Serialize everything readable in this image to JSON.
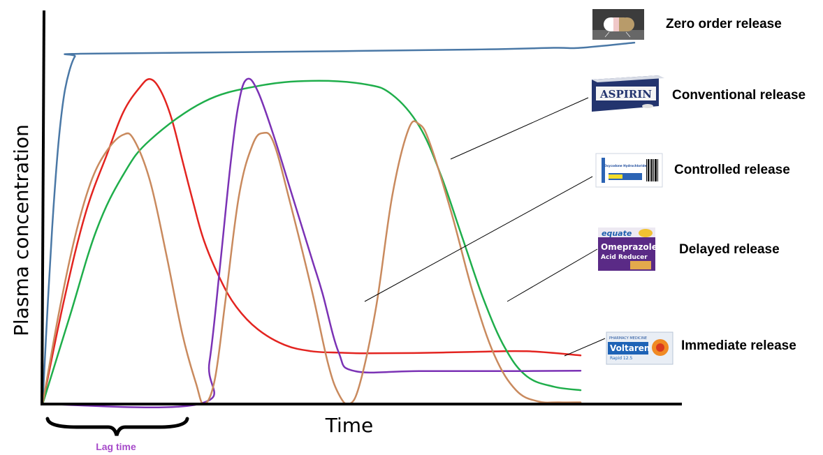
{
  "chart_data": {
    "type": "line",
    "xlabel": "Time",
    "ylabel": "Plasma concentration",
    "annotation": "Lag time",
    "series": [
      {
        "name": "Zero order release",
        "color": "#4a78a6",
        "points": [
          [
            0,
            0
          ],
          [
            1,
            30
          ],
          [
            2,
            56
          ],
          [
            3,
            76
          ],
          [
            4,
            89
          ],
          [
            5,
            96
          ],
          [
            6,
            100
          ],
          [
            7,
            100.8
          ],
          [
            40,
            101.3
          ],
          [
            80,
            102
          ],
          [
            95,
            102.5
          ],
          [
            100,
            102.5
          ],
          [
            110,
            104
          ]
        ]
      },
      {
        "name": "Conventional release",
        "color": "#e32420",
        "points": [
          [
            0,
            0
          ],
          [
            4,
            30
          ],
          [
            8,
            55
          ],
          [
            12,
            72
          ],
          [
            15,
            84
          ],
          [
            18,
            91
          ],
          [
            20,
            93.5
          ],
          [
            22,
            90
          ],
          [
            24,
            82
          ],
          [
            26,
            70
          ],
          [
            28,
            58
          ],
          [
            30,
            47
          ],
          [
            33,
            36
          ],
          [
            36,
            28
          ],
          [
            40,
            21.5
          ],
          [
            45,
            17
          ],
          [
            50,
            15.2
          ],
          [
            55,
            14.8
          ],
          [
            60,
            14.6
          ],
          [
            70,
            14.7
          ],
          [
            80,
            15
          ],
          [
            90,
            15.2
          ],
          [
            100,
            14
          ]
        ]
      },
      {
        "name": "Controlled release",
        "color": "#1fae4b",
        "points": [
          [
            0,
            0
          ],
          [
            5,
            25
          ],
          [
            10,
            50
          ],
          [
            15,
            66
          ],
          [
            20,
            76
          ],
          [
            30,
            87
          ],
          [
            40,
            91.5
          ],
          [
            50,
            93
          ],
          [
            60,
            92
          ],
          [
            65,
            89
          ],
          [
            70,
            80
          ],
          [
            74,
            66
          ],
          [
            78,
            48
          ],
          [
            82,
            30
          ],
          [
            86,
            16
          ],
          [
            90,
            8
          ],
          [
            95,
            5
          ],
          [
            100,
            4
          ]
        ]
      },
      {
        "name": "Delayed release",
        "color": "#7b32b5",
        "points": [
          [
            0,
            0
          ],
          [
            29,
            0
          ],
          [
            31,
            12
          ],
          [
            33,
            40
          ],
          [
            35,
            70
          ],
          [
            36.5,
            87
          ],
          [
            38,
            93.5
          ],
          [
            40,
            90
          ],
          [
            43,
            77
          ],
          [
            46,
            62
          ],
          [
            50,
            42
          ],
          [
            52,
            32
          ],
          [
            55,
            15
          ],
          [
            58,
            9.5
          ],
          [
            70,
            9.5
          ],
          [
            90,
            9.5
          ],
          [
            100,
            9.6
          ]
        ]
      },
      {
        "name": "Immediate release",
        "color": "#c98a5e",
        "points": [
          [
            0,
            0
          ],
          [
            3,
            26
          ],
          [
            6,
            48
          ],
          [
            9,
            64
          ],
          [
            12,
            73
          ],
          [
            15,
            77.5
          ],
          [
            17,
            76
          ],
          [
            20,
            64
          ],
          [
            23,
            43
          ],
          [
            26,
            20
          ],
          [
            28.5,
            6
          ],
          [
            30,
            0
          ],
          [
            32,
            7
          ],
          [
            34,
            30
          ],
          [
            36.5,
            60
          ],
          [
            39,
            74.5
          ],
          [
            41,
            78
          ],
          [
            43,
            75
          ],
          [
            46,
            58
          ],
          [
            50,
            33
          ],
          [
            53,
            12
          ],
          [
            55,
            3
          ],
          [
            57,
            0
          ],
          [
            59,
            6
          ],
          [
            62,
            28
          ],
          [
            65,
            60
          ],
          [
            68,
            79
          ],
          [
            70,
            80.5
          ],
          [
            72,
            75
          ],
          [
            76,
            55
          ],
          [
            80,
            32
          ],
          [
            84,
            14
          ],
          [
            88,
            4
          ],
          [
            92,
            0.8
          ],
          [
            96,
            0.5
          ],
          [
            100,
            0.5
          ]
        ]
      }
    ],
    "xlim": [
      0,
      110
    ],
    "ylim": [
      0,
      110
    ],
    "grid": false,
    "legend": "right, with product images"
  },
  "legend": {
    "zero_order": "Zero order release",
    "conventional": "Conventional release",
    "controlled": "Controlled release",
    "delayed": "Delayed release",
    "immediate": "Immediate release"
  },
  "images": {
    "zero_order": "capsule photo",
    "conventional": "ASPIRIN box",
    "controlled": "Oxycodone Hydrochloride label",
    "delayed": "equate Omeprazole Acid Reducer box",
    "immediate": "Voltaren Rapid 12.5 box"
  },
  "image_text": {
    "aspirin": "ASPIRIN",
    "omeprazole_brand": "equate",
    "omeprazole": "Omeprazole",
    "acid_reducer": "Acid Reducer",
    "voltaren": "Voltaren",
    "voltaren_sub": "Rapid 12.5",
    "pharmacy": "PHARMACY MEDICINE",
    "oxy": "Oxycodone Hydrochloride"
  },
  "colors": {
    "lag_time": "#a64ac9",
    "axis": "#000000"
  }
}
